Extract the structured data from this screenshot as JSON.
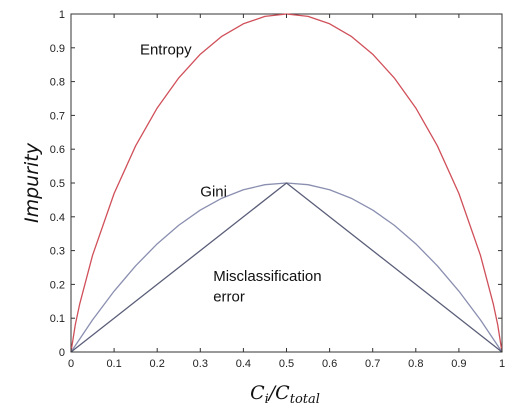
{
  "chart_data": {
    "type": "line",
    "title": "",
    "ylabel": "Impurity",
    "xlabel": {
      "main": "C",
      "sub_i": "i",
      "slash": "/C",
      "sub_total": "total"
    },
    "xlim": [
      0,
      1
    ],
    "ylim": [
      0,
      1
    ],
    "grid": false,
    "x_ticks": [
      "0",
      "0.1",
      "0.2",
      "0.3",
      "0.4",
      "0.5",
      "0.6",
      "0.7",
      "0.8",
      "0.9",
      "1"
    ],
    "y_ticks": [
      "0",
      "0.1",
      "0.2",
      "0.3",
      "0.4",
      "0.5",
      "0.6",
      "0.7",
      "0.8",
      "0.9",
      "1"
    ],
    "series": [
      {
        "name": "Entropy",
        "color": "#d0505a",
        "x": [
          0,
          0.01,
          0.02,
          0.05,
          0.1,
          0.15,
          0.2,
          0.25,
          0.3,
          0.35,
          0.4,
          0.45,
          0.5,
          0.55,
          0.6,
          0.65,
          0.7,
          0.75,
          0.8,
          0.85,
          0.9,
          0.95,
          0.98,
          0.99,
          1
        ],
        "y": [
          0,
          0.081,
          0.141,
          0.286,
          0.469,
          0.61,
          0.722,
          0.811,
          0.881,
          0.934,
          0.971,
          0.993,
          1.0,
          0.993,
          0.971,
          0.934,
          0.881,
          0.811,
          0.722,
          0.61,
          0.469,
          0.286,
          0.141,
          0.081,
          0
        ]
      },
      {
        "name": "Gini",
        "color": "#8a8fb0",
        "x": [
          0,
          0.05,
          0.1,
          0.15,
          0.2,
          0.25,
          0.3,
          0.35,
          0.4,
          0.45,
          0.5,
          0.55,
          0.6,
          0.65,
          0.7,
          0.75,
          0.8,
          0.85,
          0.9,
          0.95,
          1
        ],
        "y": [
          0,
          0.095,
          0.18,
          0.255,
          0.32,
          0.375,
          0.42,
          0.455,
          0.48,
          0.495,
          0.5,
          0.495,
          0.48,
          0.455,
          0.42,
          0.375,
          0.32,
          0.255,
          0.18,
          0.095,
          0
        ]
      },
      {
        "name": "Misclassification error",
        "color": "#5a5e78",
        "x": [
          0,
          0.5,
          1
        ],
        "y": [
          0,
          0.5,
          0
        ]
      }
    ],
    "annotations": [
      {
        "text": "Entropy",
        "x": 0.16,
        "y": 0.88
      },
      {
        "text": "Gini",
        "x": 0.3,
        "y": 0.46
      },
      {
        "text": "Misclassification",
        "x": 0.33,
        "y": 0.21
      },
      {
        "text": "error",
        "x": 0.33,
        "y": 0.15
      }
    ]
  }
}
